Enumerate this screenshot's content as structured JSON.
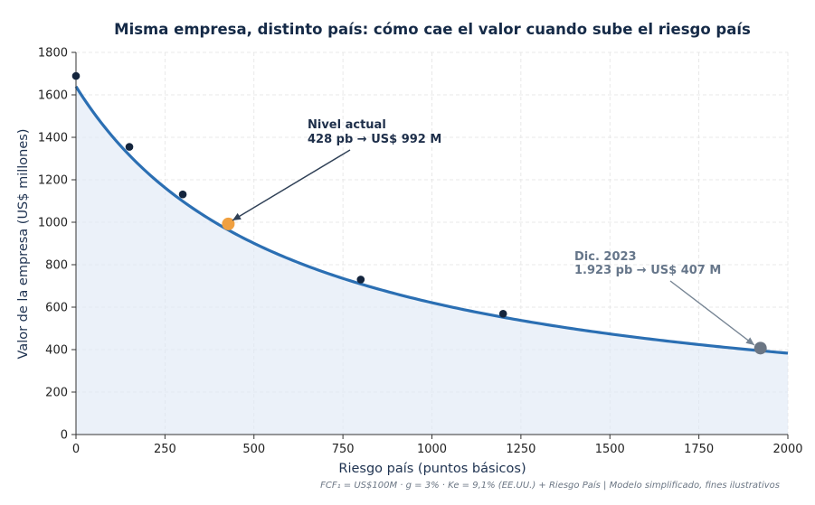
{
  "chart_data": {
    "type": "line",
    "title": "Misma empresa, distinto país: cómo cae el valor cuando sube el riesgo país",
    "xlabel": "Riesgo país (puntos básicos)",
    "ylabel": "Valor de la empresa (US$ millones)",
    "xlim": [
      0,
      2000
    ],
    "ylim": [
      0,
      1800
    ],
    "x_ticks": [
      "0",
      "250",
      "500",
      "750",
      "1000",
      "1250",
      "1500",
      "1750",
      "2000"
    ],
    "y_ticks": [
      "0",
      "200",
      "400",
      "600",
      "800",
      "1000",
      "1200",
      "1400",
      "1600",
      "1800"
    ],
    "grid": true,
    "model": {
      "fcf": 100,
      "g": 0.03,
      "ke_base": 0.091
    },
    "curve_color": "#2b6fb3",
    "fill_color": "#dde8f5",
    "marker_color": "#14253d",
    "points": [
      {
        "x": 0,
        "y": 1689
      },
      {
        "x": 150,
        "y": 1355
      },
      {
        "x": 300,
        "y": 1131
      },
      {
        "x": 800,
        "y": 730
      },
      {
        "x": 1200,
        "y": 569
      }
    ],
    "highlights": [
      {
        "key": "current",
        "x": 428,
        "y": 992,
        "color": "#f0a040",
        "line1": "Nivel actual",
        "line2": "428 pb → US$ 992 M"
      },
      {
        "key": "dec",
        "x": 1923,
        "y": 407,
        "color": "#6b7684",
        "line1": "Dic. 2023",
        "line2": "1.923 pb → US$ 407 M"
      }
    ],
    "footnote": "FCF₁ = US$100M · g = 3% · Ke = 9,1% (EE.UU.) + Riesgo País | Modelo simplificado, fines ilustrativos"
  }
}
